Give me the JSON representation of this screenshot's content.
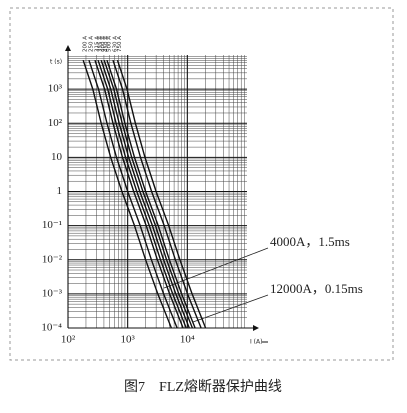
{
  "chart_data": {
    "type": "line",
    "log_x": true,
    "log_y": true,
    "grid": true,
    "color": "#111111",
    "y_label": "t (s)",
    "x_label": "I (A)",
    "xlim": [
      100,
      100000
    ],
    "ylim": [
      0.0001,
      10000
    ],
    "xticks": [
      {
        "value": 100,
        "label": "10²"
      },
      {
        "value": 1000,
        "label": "10³"
      },
      {
        "value": 10000,
        "label": "10⁴"
      }
    ],
    "yticks": [
      {
        "value": 0.0001,
        "label": "10⁻⁴"
      },
      {
        "value": 0.001,
        "label": "10⁻³"
      },
      {
        "value": 0.01,
        "label": "10⁻²"
      },
      {
        "value": 0.1,
        "label": "10⁻¹"
      },
      1,
      10,
      {
        "value": 100,
        "label": "10²"
      },
      {
        "value": 1000,
        "label": "10³"
      }
    ],
    "series": [
      {
        "name": "200 A",
        "x": [
          180,
          260,
          360,
          520,
          800,
          1300,
          2000,
          3200,
          5400
        ],
        "values": [
          7000,
          1000,
          100,
          10,
          1,
          0.1,
          0.01,
          0.001,
          0.0001
        ]
      },
      {
        "name": "250 A",
        "x": [
          225,
          325,
          450,
          650,
          1000,
          1625,
          2500,
          4000,
          6750
        ],
        "values": [
          7000,
          1000,
          100,
          10,
          1,
          0.1,
          0.01,
          0.001,
          0.0001
        ]
      },
      {
        "name": "315 A",
        "x": [
          284,
          410,
          567,
          819,
          1260,
          2048,
          3150,
          5040,
          8505
        ],
        "values": [
          7000,
          1000,
          100,
          10,
          1,
          0.1,
          0.01,
          0.001,
          0.0001
        ]
      },
      {
        "name": "355 A",
        "x": [
          320,
          462,
          639,
          923,
          1420,
          2308,
          3550,
          5680,
          9585
        ],
        "values": [
          7000,
          1000,
          100,
          10,
          1,
          0.1,
          0.01,
          0.001,
          0.0001
        ]
      },
      {
        "name": "400 A",
        "x": [
          360,
          520,
          720,
          1040,
          1600,
          2600,
          4000,
          6400,
          10800
        ],
        "values": [
          7000,
          1000,
          100,
          10,
          1,
          0.1,
          0.01,
          0.001,
          0.0001
        ]
      },
      {
        "name": "450 A",
        "x": [
          405,
          585,
          810,
          1170,
          1800,
          2925,
          4500,
          7200,
          12150
        ],
        "values": [
          7000,
          1000,
          100,
          10,
          1,
          0.1,
          0.01,
          0.001,
          0.0001
        ]
      },
      {
        "name": "500 A",
        "x": [
          450,
          650,
          900,
          1300,
          2000,
          3250,
          5000,
          8000,
          13500
        ],
        "values": [
          7000,
          1000,
          100,
          10,
          1,
          0.1,
          0.01,
          0.001,
          0.0001
        ]
      },
      {
        "name": "630 A",
        "x": [
          567,
          819,
          1134,
          1638,
          2520,
          4095,
          6300,
          10080,
          17010
        ],
        "values": [
          7000,
          1000,
          100,
          10,
          1,
          0.1,
          0.01,
          0.001,
          0.0001
        ]
      },
      {
        "name": "750 A",
        "x": [
          675,
          975,
          1350,
          1950,
          3000,
          4875,
          7500,
          12000,
          20250
        ],
        "values": [
          7000,
          1000,
          100,
          10,
          1,
          0.1,
          0.01,
          0.001,
          0.0001
        ]
      }
    ],
    "annotations": [
      "4000A，1.5ms",
      "12000A，0.15ms"
    ],
    "caption": "图7　FLZ熔断器保护曲线"
  }
}
